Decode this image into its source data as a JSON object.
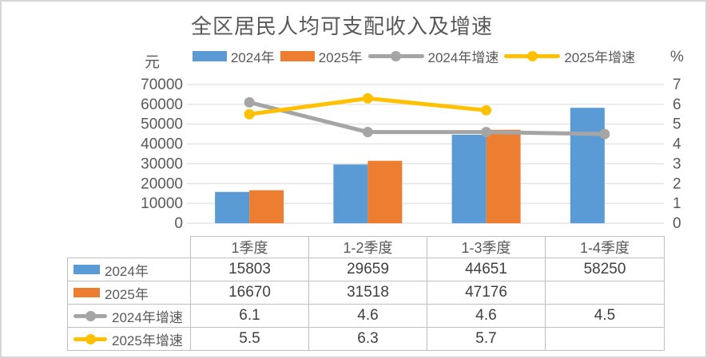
{
  "chart_data": {
    "type": "combo",
    "title": "全区居民人均可支配收入及增速",
    "categories": [
      "1季度",
      "1-2季度",
      "1-3季度",
      "1-4季度"
    ],
    "left_axis": {
      "label": "元",
      "min": 0,
      "max": 70000,
      "step": 10000
    },
    "right_axis": {
      "label": "%",
      "min": 0,
      "max": 7,
      "step": 1
    },
    "grid": true,
    "grid_color": "#d9d9d9",
    "text_color": "#595959",
    "legend_position": "top",
    "series": [
      {
        "name": "2024年",
        "type": "bar",
        "axis": "left",
        "color": "#5B9BD5",
        "values": [
          15803,
          29659,
          44651,
          58250
        ]
      },
      {
        "name": "2025年",
        "type": "bar",
        "axis": "left",
        "color": "#ED7D31",
        "values": [
          16670,
          31518,
          47176,
          null
        ]
      },
      {
        "name": "2024年增速",
        "type": "line",
        "axis": "right",
        "color": "#A5A5A5",
        "values": [
          6.1,
          4.6,
          4.6,
          4.5
        ]
      },
      {
        "name": "2025年增速",
        "type": "line",
        "axis": "right",
        "color": "#FFC000",
        "values": [
          5.5,
          6.3,
          5.7,
          null
        ]
      }
    ]
  }
}
